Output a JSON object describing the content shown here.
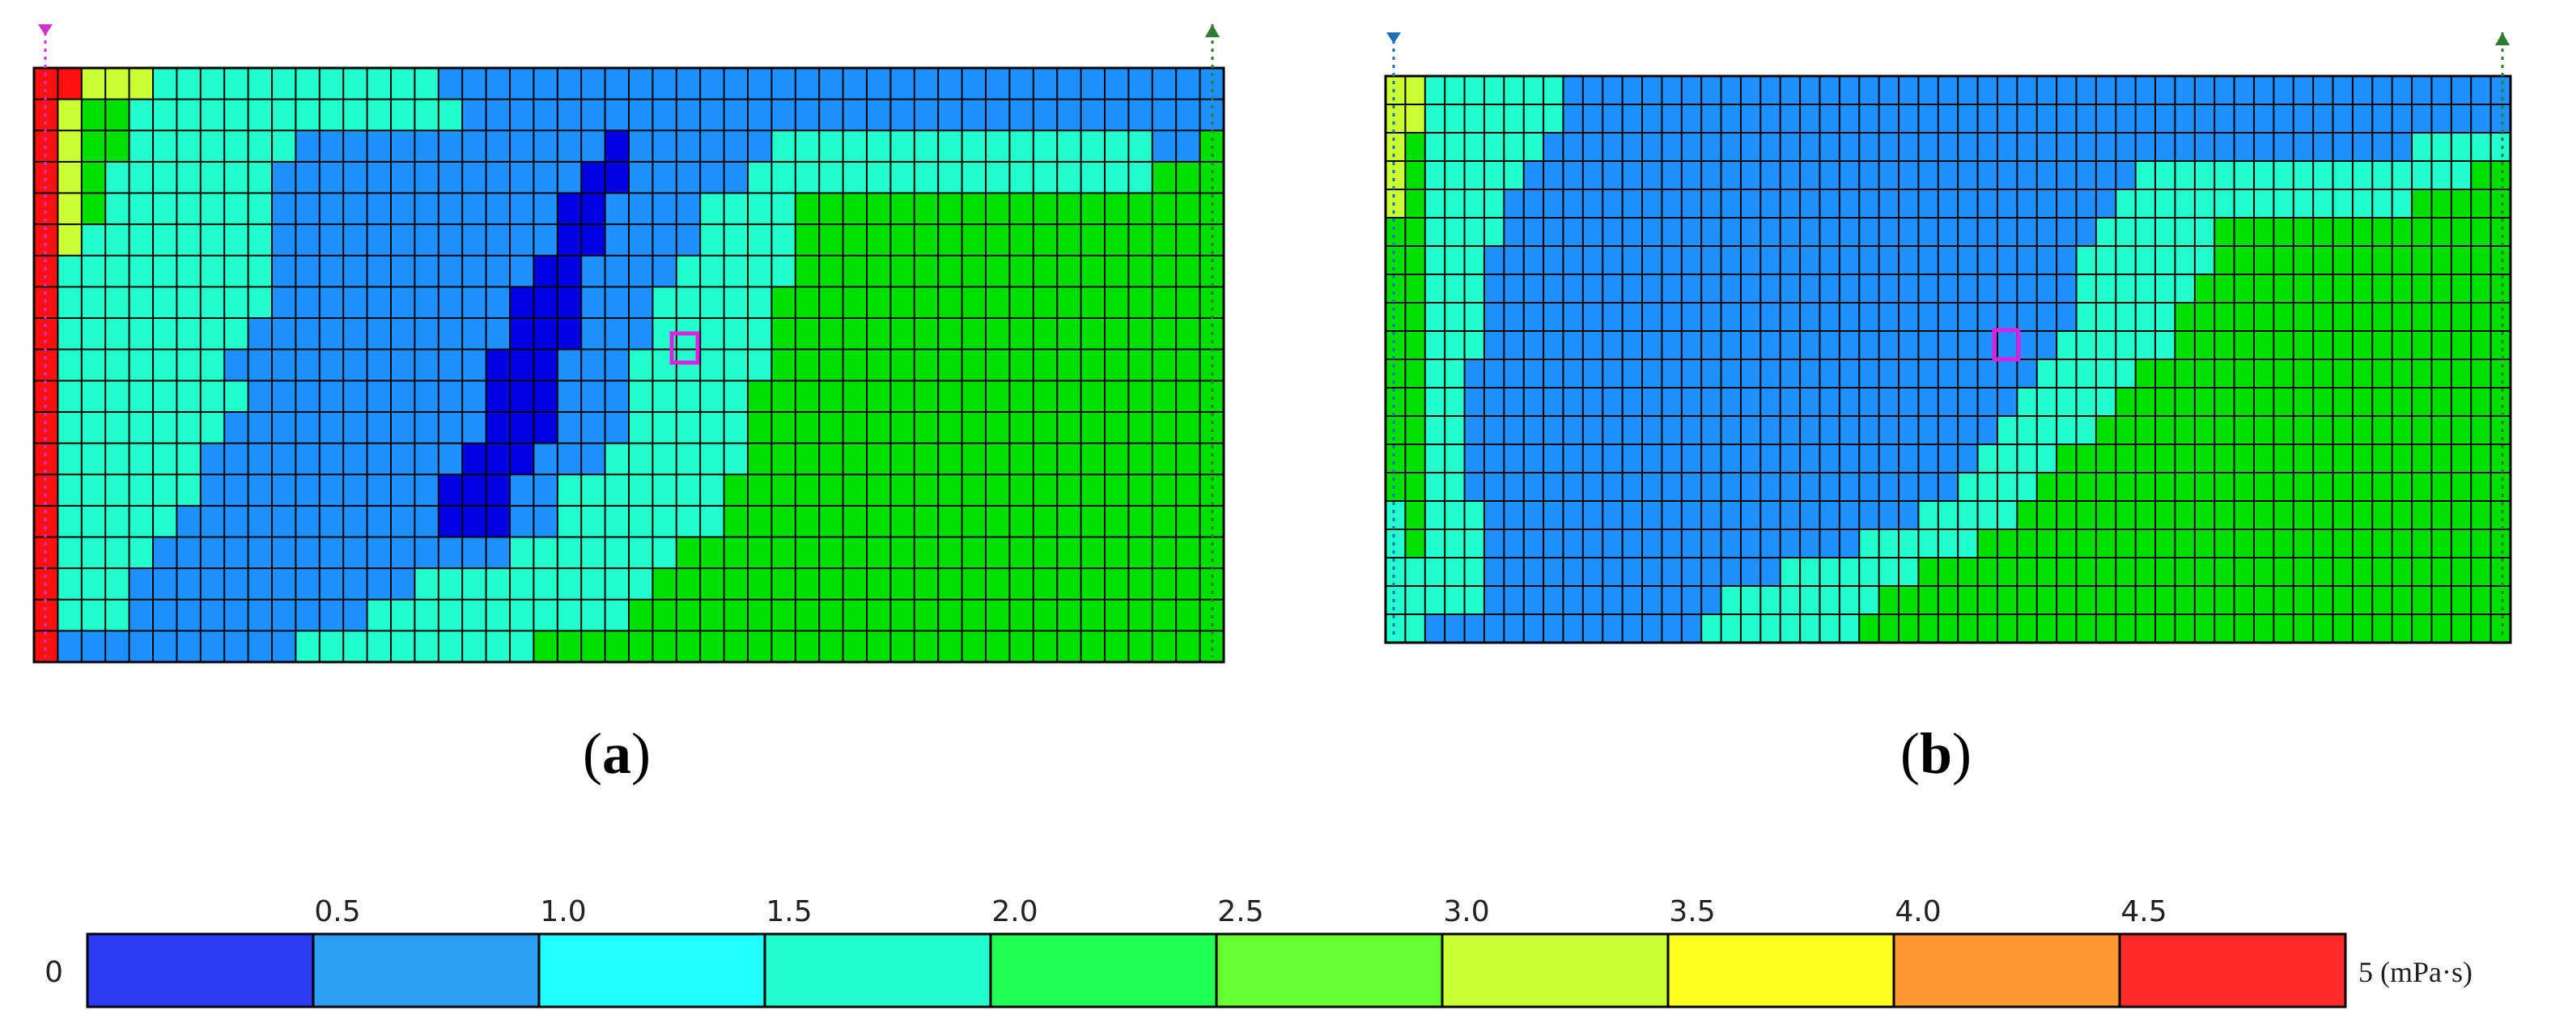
{
  "figure": {
    "panel_labels": [
      "a",
      "b"
    ],
    "colorbar_unit": "(mPa·s)"
  },
  "chart_data": [
    {
      "type": "heatmap",
      "panel": "a",
      "title": "",
      "xlabel": "",
      "ylabel": "",
      "value_range": [
        0,
        5
      ],
      "grid_lines": true,
      "color_levels": [
        {
          "range": [
            0,
            0.5
          ],
          "color": "#0000e0"
        },
        {
          "range": [
            0.5,
            1.0
          ],
          "color": "#1f90ff"
        },
        {
          "range": [
            1.5,
            2.0
          ],
          "color": "#22ffcc"
        },
        {
          "range": [
            2.0,
            2.5
          ],
          "color": "#00e000"
        },
        {
          "range": [
            3.0,
            3.5
          ],
          "color": "#ccff33"
        },
        {
          "range": [
            4.5,
            5.0
          ],
          "color": "#ff1010"
        }
      ],
      "rows": [
        "HHfggccccccccccccbbbbbbbbbbbbbbbbbbbbbbbbbbbbbbbb",
        "Hfddccccccccccccccbbbbbbbbbbbbbbbbbbbbbbbbbbbbbbb",
        "Hfddcccccccbbbbbbbbbbbbbabbbbbbccccccccccccccccbbd",
        "Hfdcccccccbbbbbbbbbbbbbaabbbbbcccccccccccccccccddd",
        "Hfdcccccccbbbbbbbbbbbbaabbbbccccdddddddddddddddddd",
        "Hfccccccccbbbbbbbbbbbbaabbbbccccdddddddddddddddddd",
        "Hcccccccccbbbbbbbbbbbaabbbbcccccdddddddddddddddddd",
        "Hcccccccccbbbbbbbbbbaaabbbcccccddddddddddddddddddd",
        "Hccccccccbbbbbbbbbbbaaabbbcccccddddddddddddddddddd",
        "Hcccccccbbbbbbbbbbbaaabbbccccccddddddddddddddddddd",
        "Hccccccccbbbbbbbbbbaaabbbcccccdddddddddddddddddddd",
        "Hcccccccbbbbbbbbbbbaaabbbcccccdddddddddddddddddddd",
        "Hccccccbbbbbbbbbbbaaabbbccccccdddddddddddddddddddd",
        "Hccccccbbbbbbbbbbaaabbcccccccddddddddddddddddddddd",
        "Hcccccbbbbbbbbbbbaaabbcccccccddddddddddddddddddddd",
        "Hccccbbbbbbbbbbbbbbbcccccccdddddddddddddddddddddd",
        "Hcccbbbbbbbbbbbbccccccccccdddddddddddddddddddddddd",
        "Hcccbbbbbbbbbbcccccccccccdddddddddddddddddddddddd",
        "Hbbbbbbbbbbccccccccccdddddddddddddddddddddddddddd"
      ]
    },
    {
      "type": "heatmap",
      "panel": "b",
      "title": "",
      "xlabel": "",
      "ylabel": "",
      "value_range": [
        0,
        5
      ],
      "grid_lines": true,
      "color_levels": [
        {
          "range": [
            0.5,
            1.0
          ],
          "color": "#1f90ff"
        },
        {
          "range": [
            1.5,
            2.0
          ],
          "color": "#22ffcc"
        },
        {
          "range": [
            2.0,
            2.5
          ],
          "color": "#00e000"
        },
        {
          "range": [
            3.0,
            3.5
          ],
          "color": "#ccff33"
        }
      ],
      "rows": [
        "ffcccccccbbbbbbbbbbbbbbbbbbbbbbbbbbbbbbbbbbbbbbbbbbbbbbb",
        "ffcccccccbbbbbbbbbbbbbbbbbbbbbbbbbbbbbbbbbbbbbbbbbbbbbbb",
        "fdccccccbbbbbbbbbbbbbbbbbbbbbbbbbbbbbbbbbbbbbbbbbbbbcccc",
        "fdcccccbbbbbbbbbbbbbbbbbbbbbbbbbbbbbbbcccccccccccccccccdd",
        "fdccccbbbbbbbbbbbbbbbbbbbbbbbbbbbbbbbcccccccccccccccdddd",
        "ddccccbbbbbbbbbbbbbbbbbbbbbbbbbbbbbbccccccdddddddddddddd",
        "ddcccbbbbbbbbbbbbbbbbbbbbbbbbbbbbbbcccccccdddddddddddddd",
        "ddcccbbbbbbbbbbbbbbbbbbbbbbbbbbbbbbccccccddddddddddddddd",
        "ddcccbbbbbbbbbbbbbbbbbbbbbbbbbbbbbbcccccdddddddddddddddd",
        "ddcccbbbbbbbbbbbbbbbbbbbbbbbbbbbbbccccccdddddddddddddddd",
        "ddccbbbbbbbbbbbbbbbbbbbbbbbbbbbbbcccccdddddddddddddddddd",
        "ddccbbbbbbbbbbbbbbbbbbbbbbbbbbbbcccccddddddddddddddddddd",
        "ddccbbbbbbbbbbbbbbbbbbbbbbbbbbbcccccdddddddddddddddddddd",
        "ddccbbbbbbbbbbbbbbbbbbbbbbbbbbccccdddddddddddddddddddddd",
        "ddccbbbbbbbbbbbbbbbbbbbbbbbbbccccddddddddddddddddddddddd",
        "cdcccbbbbbbbbbbbbbbbbbbbbbbcccccdddddddddddddddddddddddd",
        "cdcccbbbbbbbbbbbbbbbbbbbccccccdddddddddddddddddddddddddd",
        "cccccbbbbbbbbbbbbbbbcccccccddddddddddddddddddddddddddddd",
        "cccccbbbbbbbbbbbbccccccccdddddddddddddddddddddddddddddd",
        "ccbbbbbbbbbbbbbbccccccccdddddddddddddddddddddddddddddddd"
      ]
    },
    {
      "type": "bar",
      "role": "colorbar",
      "ticks": [
        "0",
        "0.5",
        "1.0",
        "1.5",
        "2.0",
        "2.5",
        "3.0",
        "3.5",
        "4.0",
        "4.5",
        "5"
      ],
      "unit": "(mPa·s)",
      "range": [
        0,
        5
      ],
      "bins": [
        {
          "range": [
            0,
            0.5
          ],
          "color": "#2b3bf2"
        },
        {
          "range": [
            0.5,
            1.0
          ],
          "color": "#2b9ef2"
        },
        {
          "range": [
            1.0,
            1.5
          ],
          "color": "#22ffff"
        },
        {
          "range": [
            1.5,
            2.0
          ],
          "color": "#22ffcc"
        },
        {
          "range": [
            2.0,
            2.5
          ],
          "color": "#22ff55"
        },
        {
          "range": [
            2.5,
            3.0
          ],
          "color": "#66ff33"
        },
        {
          "range": [
            3.0,
            3.5
          ],
          "color": "#ccff33"
        },
        {
          "range": [
            3.5,
            4.0
          ],
          "color": "#ffff22"
        },
        {
          "range": [
            4.0,
            4.5
          ],
          "color": "#ff9933"
        },
        {
          "range": [
            4.5,
            5.0
          ],
          "color": "#ff2a2a"
        }
      ]
    }
  ]
}
